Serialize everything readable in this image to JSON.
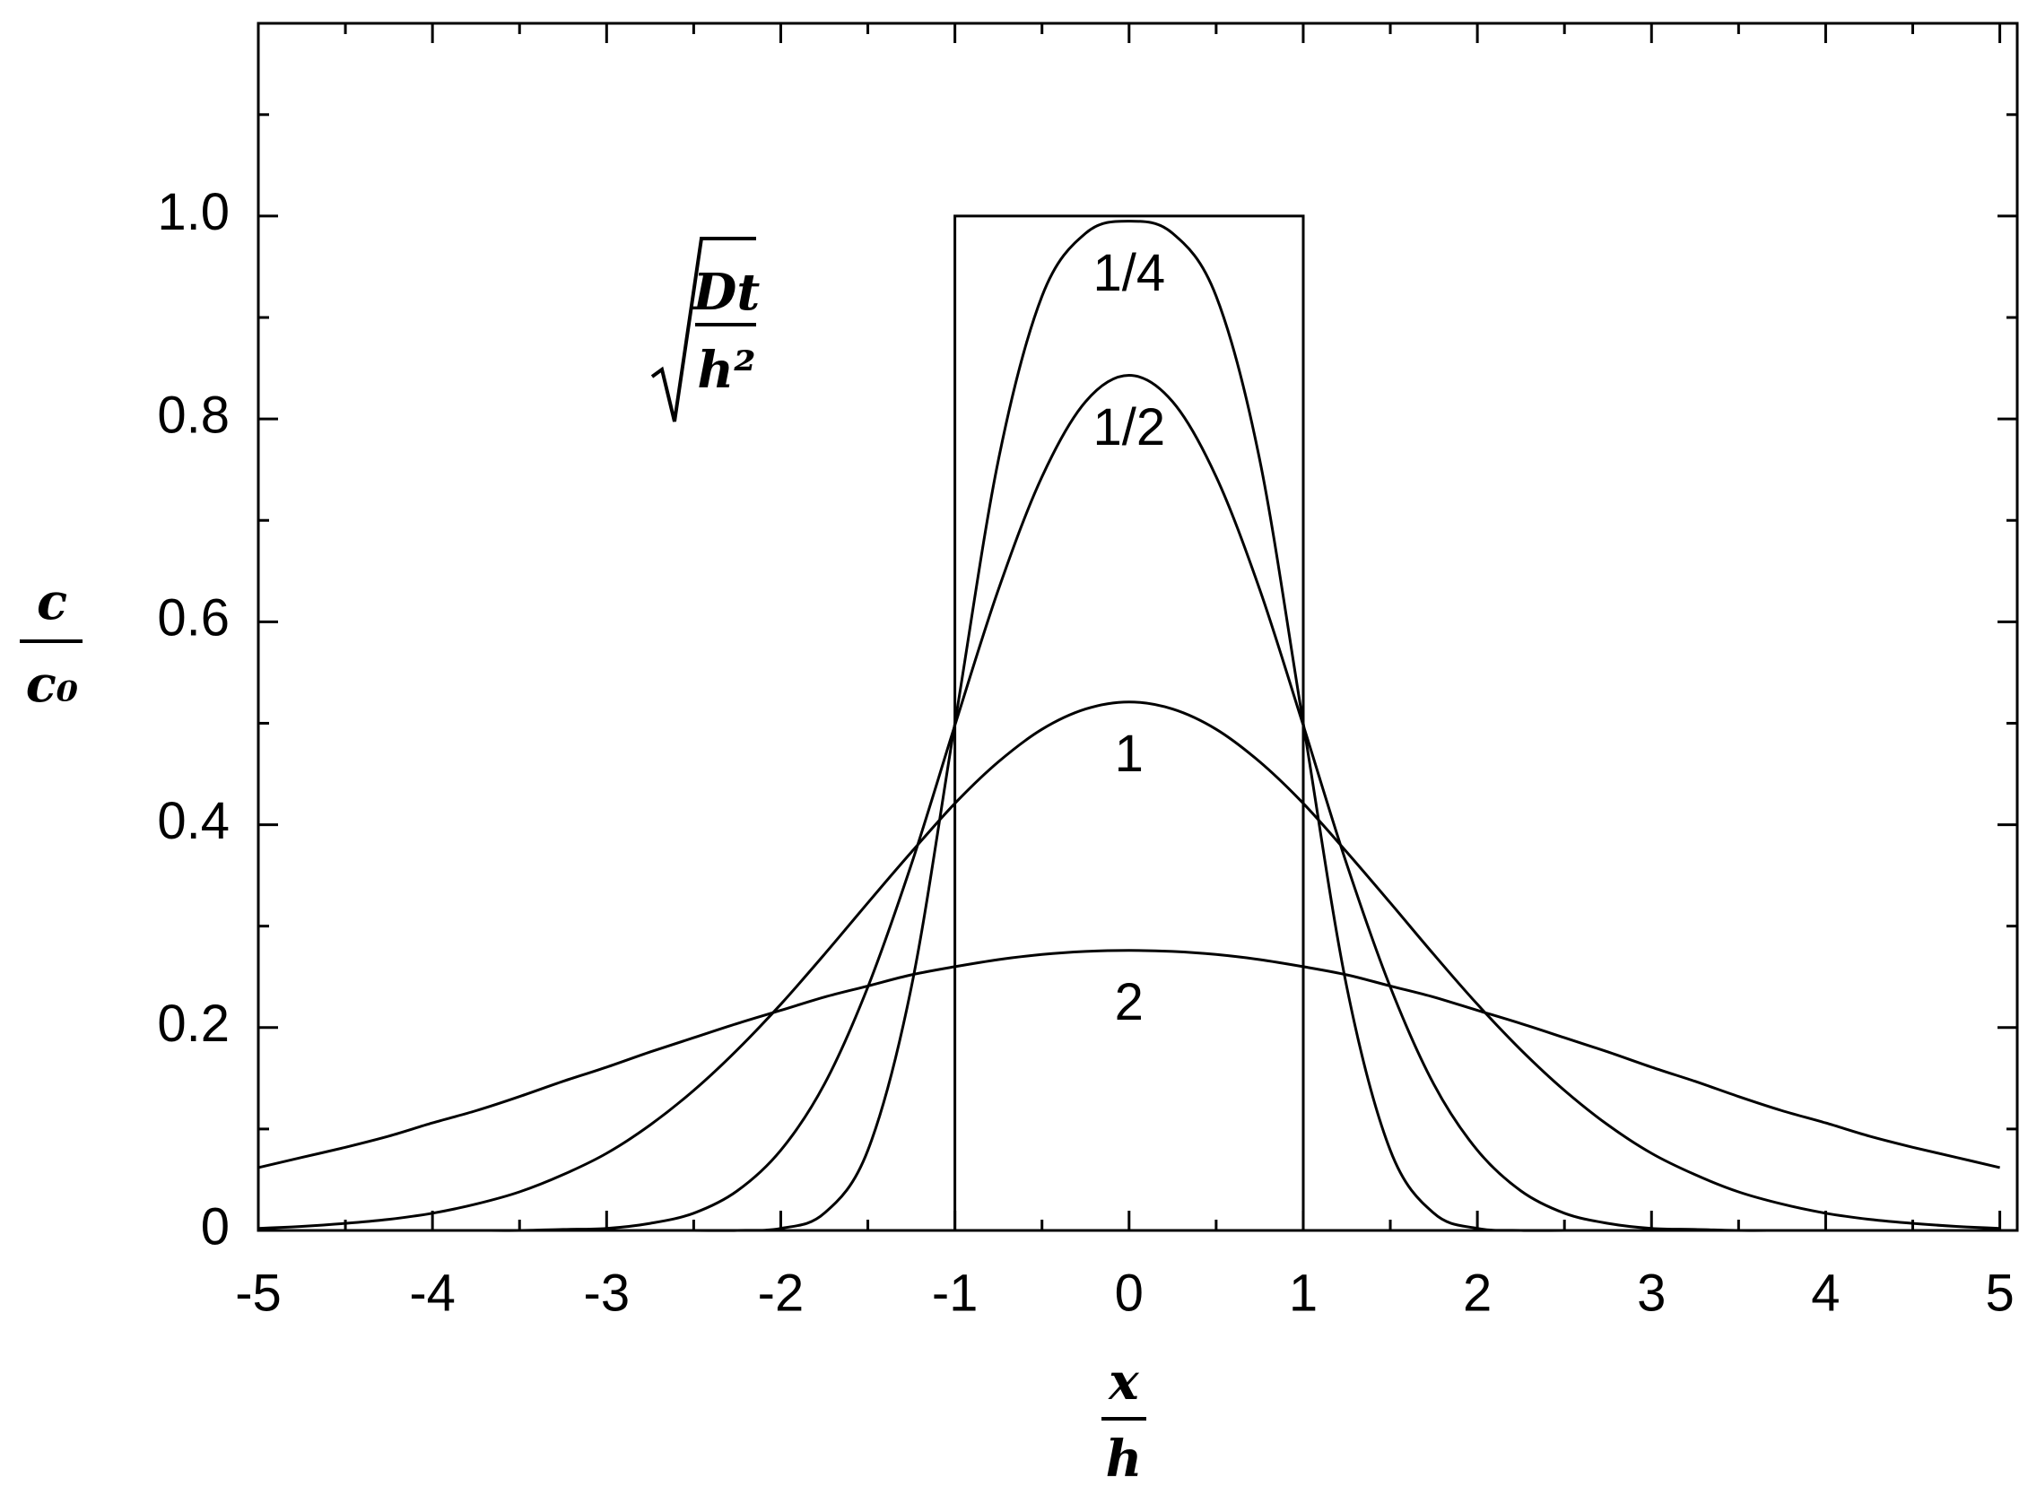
{
  "chart_data": {
    "type": "line",
    "ylabel_numerator": "c",
    "ylabel_denominator": "c₀",
    "xlabel_numerator": "x",
    "xlabel_denominator": "h",
    "annotation_numerator": "Dt",
    "annotation_denominator": "h²",
    "xlim": [
      -5,
      5.1
    ],
    "ylim": [
      0,
      1.19
    ],
    "xticks": [
      -5,
      -4,
      -3,
      -2,
      -1,
      0,
      1,
      2,
      3,
      4,
      5
    ],
    "xminorticks": [
      -4.5,
      -3.5,
      -2.5,
      -1.5,
      -0.5,
      0.5,
      1.5,
      2.5,
      3.5,
      4.5
    ],
    "yticks": [
      0,
      0.2,
      0.4,
      0.6,
      0.8,
      {
        "value": 1,
        "label": "1.0"
      }
    ],
    "yminorticks": [
      0.1,
      0.3,
      0.5,
      0.7,
      0.9,
      1.1
    ],
    "grid": false,
    "x": [
      -5,
      -4.75,
      -4.5,
      -4.25,
      -4,
      -3.75,
      -3.5,
      -3.25,
      -3,
      -2.75,
      -2.5,
      -2.25,
      -2,
      -1.75,
      -1.5,
      -1.25,
      -1,
      -0.75,
      -0.5,
      -0.25,
      0,
      0.25,
      0.5,
      0.75,
      1,
      1.25,
      1.5,
      1.75,
      2,
      2.25,
      2.5,
      2.75,
      3,
      3.25,
      3.5,
      3.75,
      4,
      4.25,
      4.5,
      4.75,
      5
    ],
    "series": [
      {
        "color": "#000000",
        "x": [
          -1,
          -1,
          1,
          1
        ],
        "values": [
          0,
          1,
          1,
          0
        ]
      },
      {
        "name": "1/4",
        "color": "#000000",
        "values": [
          0,
          0,
          0,
          0,
          0,
          0,
          0,
          0,
          0,
          0,
          0,
          0,
          0.002,
          0.017,
          0.079,
          0.24,
          0.5,
          0.76,
          0.921,
          0.983,
          0.995,
          0.983,
          0.921,
          0.76,
          0.5,
          0.24,
          0.079,
          0.017,
          0.002,
          0,
          0,
          0,
          0,
          0,
          0,
          0,
          0,
          0,
          0,
          0,
          0
        ]
      },
      {
        "name": "1/2",
        "color": "#000000",
        "values": [
          0,
          0,
          0,
          0,
          0,
          0,
          0,
          0.001,
          0.002,
          0.007,
          0.017,
          0.039,
          0.079,
          0.144,
          0.24,
          0.361,
          0.498,
          0.632,
          0.743,
          0.817,
          0.843,
          0.817,
          0.743,
          0.632,
          0.498,
          0.361,
          0.24,
          0.144,
          0.079,
          0.039,
          0.017,
          0.007,
          0.002,
          0.001,
          0,
          0,
          0,
          0,
          0,
          0,
          0
        ]
      },
      {
        "name": "1",
        "color": "#000000",
        "values": [
          0.002,
          0.004,
          0.007,
          0.011,
          0.017,
          0.026,
          0.038,
          0.055,
          0.076,
          0.104,
          0.138,
          0.178,
          0.223,
          0.272,
          0.323,
          0.373,
          0.421,
          0.462,
          0.494,
          0.514,
          0.521,
          0.514,
          0.494,
          0.462,
          0.421,
          0.373,
          0.323,
          0.272,
          0.223,
          0.178,
          0.138,
          0.104,
          0.076,
          0.055,
          0.038,
          0.026,
          0.017,
          0.011,
          0.007,
          0.004,
          0.002
        ]
      },
      {
        "name": "2",
        "color": "#000000",
        "values": [
          0.062,
          0.072,
          0.082,
          0.093,
          0.106,
          0.118,
          0.132,
          0.147,
          0.161,
          0.176,
          0.19,
          0.204,
          0.217,
          0.23,
          0.241,
          0.252,
          0.26,
          0.267,
          0.272,
          0.275,
          0.276,
          0.275,
          0.272,
          0.267,
          0.26,
          0.252,
          0.241,
          0.23,
          0.217,
          0.204,
          0.19,
          0.176,
          0.161,
          0.147,
          0.132,
          0.118,
          0.106,
          0.093,
          0.082,
          0.072,
          0.062
        ]
      }
    ]
  }
}
